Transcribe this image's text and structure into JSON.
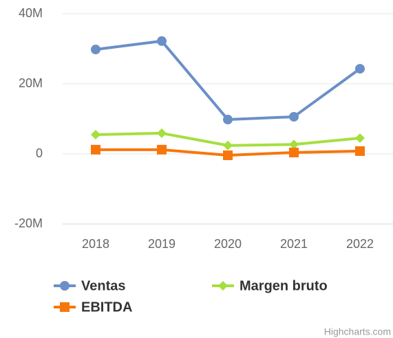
{
  "chart_data": {
    "type": "line",
    "categories": [
      "2018",
      "2019",
      "2020",
      "2021",
      "2022"
    ],
    "series": [
      {
        "name": "Ventas",
        "color": "#6b8fc7",
        "marker": "circle",
        "values": [
          29800000,
          32200000,
          9800000,
          10600000,
          24300000
        ]
      },
      {
        "name": "Margen bruto",
        "color": "#a5df3f",
        "marker": "diamond",
        "values": [
          5500000,
          5900000,
          2400000,
          2700000,
          4500000
        ]
      },
      {
        "name": "EBITDA",
        "color": "#f7760b",
        "marker": "square",
        "values": [
          1200000,
          1200000,
          -400000,
          400000,
          800000
        ]
      }
    ],
    "ylim": [
      -20000000,
      40000000
    ],
    "yticks": [
      {
        "value": -20000000,
        "label": "-20M"
      },
      0,
      {
        "value": 20000000,
        "label": "20M"
      },
      {
        "value": 40000000,
        "label": "40M"
      }
    ],
    "grid": true,
    "credits": "Highcharts.com"
  }
}
